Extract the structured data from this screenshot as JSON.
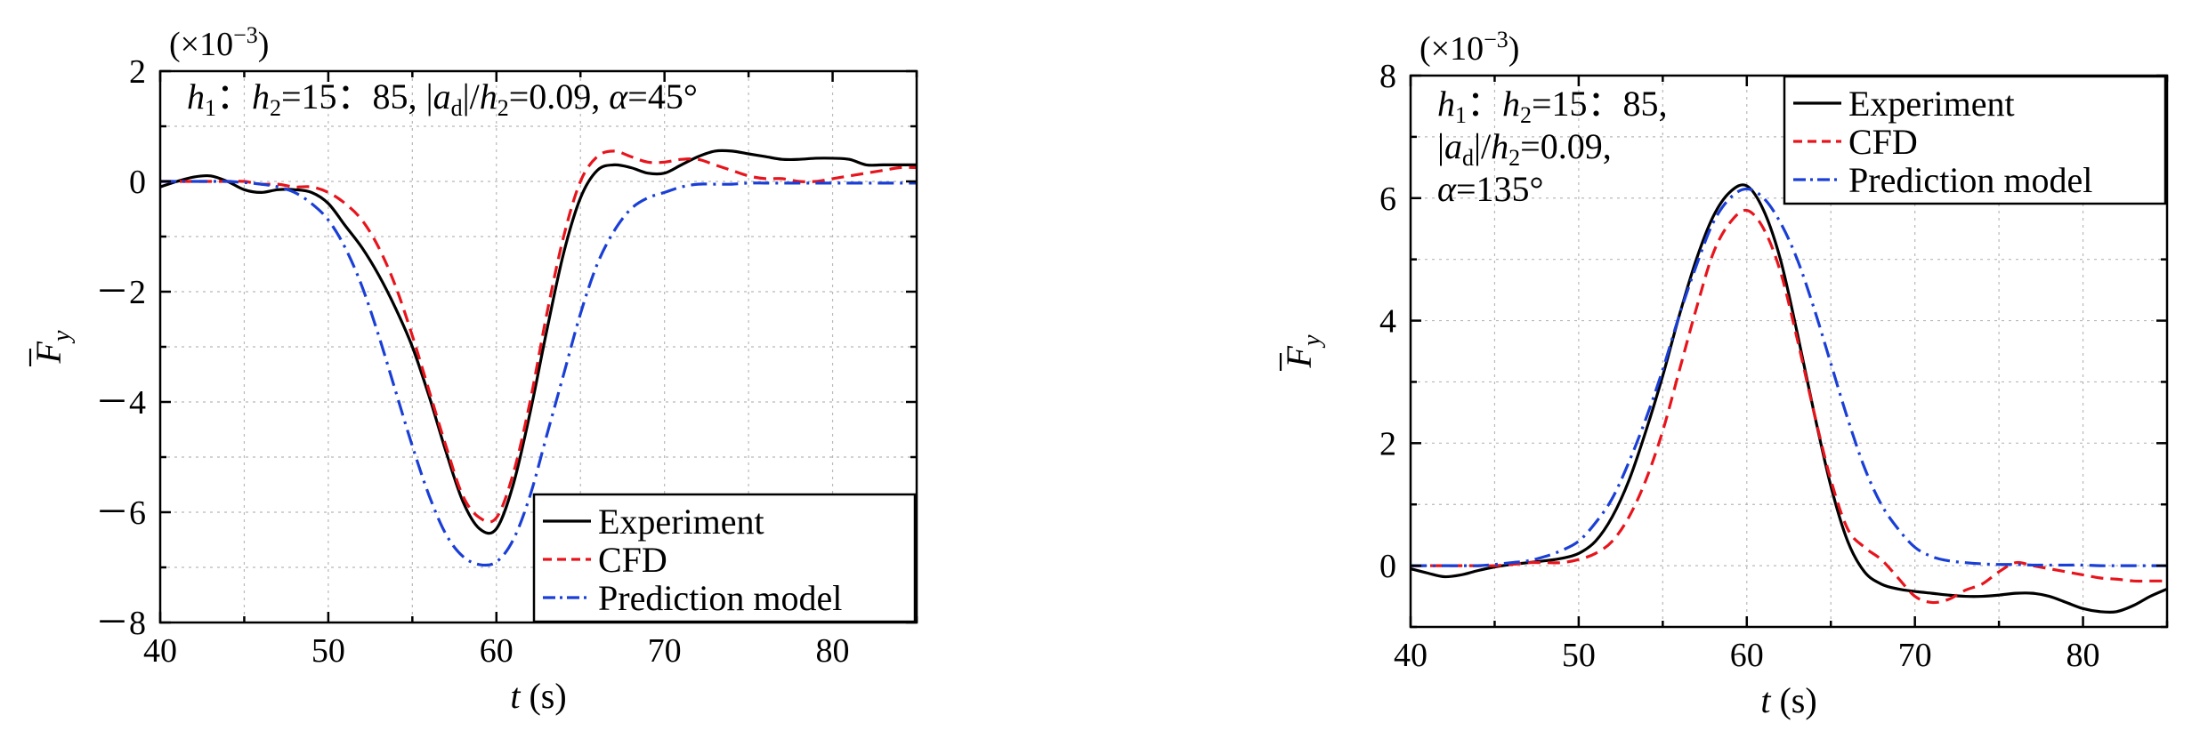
{
  "chart_data": [
    {
      "type": "line",
      "multiplier": "(×10",
      "multiplier_exp": "−3",
      "multiplier_close": ")",
      "annotation": [
        {
          "parts": [
            [
              "h",
              "i"
            ],
            [
              "1",
              "sub"
            ],
            [
              "：",
              "n"
            ],
            [
              "h",
              "i"
            ],
            [
              "2",
              "sub"
            ],
            [
              "=15：85,  ",
              "n"
            ],
            [
              "|",
              "n"
            ],
            [
              "a",
              "i"
            ],
            [
              "d",
              "sub"
            ],
            [
              "|/",
              "n"
            ],
            [
              "h",
              "i"
            ],
            [
              "2",
              "sub"
            ],
            [
              "=0.09, ",
              "n"
            ],
            [
              "α",
              "i"
            ],
            [
              "=45°",
              "n"
            ]
          ]
        }
      ],
      "xlabel": "t",
      "xlabel_unit": " (s)",
      "ylabel": "F",
      "ylabel_sub": "y",
      "xlim": [
        40,
        85
      ],
      "ylim": [
        -8,
        2
      ],
      "x_ticks": [
        40,
        50,
        60,
        70,
        80
      ],
      "y_ticks": [
        -8,
        -6,
        -4,
        -2,
        0,
        2
      ],
      "y_tick_labels": [
        "－8",
        "－6",
        "－4",
        "－2",
        "0",
        "2"
      ],
      "x_tick_labels": [
        "40",
        "50",
        "60",
        "70",
        "80"
      ],
      "legend": {
        "placement": "bottom-right"
      },
      "series": [
        {
          "name": "Experiment",
          "color": "#000000",
          "dash": "solid",
          "x": [
            40,
            41,
            42,
            43,
            44,
            45,
            46,
            47,
            48,
            49,
            50,
            51,
            52,
            53,
            54,
            55,
            56,
            57,
            58,
            59,
            60,
            61,
            62,
            63,
            64,
            65,
            66,
            67,
            68,
            69,
            70,
            71,
            72,
            73,
            74,
            75,
            76,
            77,
            78,
            79,
            80,
            81,
            82,
            83,
            84,
            85
          ],
          "y": [
            -0.1,
            0.0,
            0.08,
            0.1,
            0.0,
            -0.15,
            -0.2,
            -0.15,
            -0.15,
            -0.2,
            -0.4,
            -0.8,
            -1.2,
            -1.7,
            -2.3,
            -3.0,
            -3.9,
            -4.9,
            -5.8,
            -6.3,
            -6.3,
            -5.5,
            -4.2,
            -2.7,
            -1.3,
            -0.3,
            0.2,
            0.3,
            0.25,
            0.15,
            0.15,
            0.3,
            0.45,
            0.55,
            0.55,
            0.5,
            0.45,
            0.4,
            0.4,
            0.42,
            0.42,
            0.4,
            0.3,
            0.3,
            0.3,
            0.3
          ]
        },
        {
          "name": "CFD",
          "color": "#e8141c",
          "dash": "dash",
          "x": [
            40,
            41,
            42,
            43,
            44,
            45,
            46,
            47,
            48,
            49,
            50,
            51,
            52,
            53,
            54,
            55,
            56,
            57,
            58,
            59,
            60,
            61,
            62,
            63,
            64,
            65,
            66,
            67,
            68,
            69,
            70,
            71,
            72,
            73,
            74,
            75,
            76,
            77,
            78,
            79,
            80,
            81,
            82,
            83,
            84,
            85
          ],
          "y": [
            0.0,
            0.0,
            0.0,
            0.0,
            0.0,
            0.0,
            -0.05,
            -0.05,
            -0.1,
            -0.1,
            -0.2,
            -0.4,
            -0.7,
            -1.2,
            -1.9,
            -2.8,
            -3.8,
            -4.8,
            -5.7,
            -6.1,
            -6.1,
            -5.3,
            -4.0,
            -2.4,
            -1.0,
            0.0,
            0.45,
            0.55,
            0.45,
            0.35,
            0.35,
            0.4,
            0.4,
            0.3,
            0.2,
            0.1,
            0.05,
            0.05,
            0.0,
            0.0,
            0.05,
            0.1,
            0.15,
            0.2,
            0.25,
            0.25
          ]
        },
        {
          "name": "Prediction model",
          "color": "#1a3fd6",
          "dash": "dashdot",
          "x": [
            40,
            41,
            42,
            43,
            44,
            45,
            46,
            47,
            48,
            49,
            50,
            51,
            52,
            53,
            54,
            55,
            56,
            57,
            58,
            59,
            60,
            61,
            62,
            63,
            64,
            65,
            66,
            67,
            68,
            69,
            70,
            71,
            72,
            73,
            74,
            75,
            76,
            77,
            78,
            79,
            80,
            81,
            82,
            83,
            84,
            85
          ],
          "y": [
            0.0,
            0.0,
            0.0,
            0.0,
            0.0,
            -0.02,
            -0.05,
            -0.1,
            -0.2,
            -0.4,
            -0.7,
            -1.2,
            -1.9,
            -2.8,
            -3.8,
            -4.8,
            -5.7,
            -6.4,
            -6.8,
            -6.95,
            -6.9,
            -6.5,
            -5.7,
            -4.6,
            -3.5,
            -2.4,
            -1.5,
            -0.9,
            -0.5,
            -0.3,
            -0.2,
            -0.1,
            -0.05,
            -0.05,
            -0.05,
            -0.03,
            -0.03,
            -0.03,
            -0.03,
            -0.03,
            -0.03,
            -0.03,
            -0.03,
            -0.03,
            -0.03,
            -0.03
          ]
        }
      ]
    },
    {
      "type": "line",
      "multiplier": "(×10",
      "multiplier_exp": "−3",
      "multiplier_close": ")",
      "annotation": [
        {
          "parts": [
            [
              "h",
              "i"
            ],
            [
              "1",
              "sub"
            ],
            [
              "：",
              "n"
            ],
            [
              "h",
              "i"
            ],
            [
              "2",
              "sub"
            ],
            [
              "=15：85,",
              "n"
            ]
          ]
        },
        {
          "parts": [
            [
              "|",
              "n"
            ],
            [
              "a",
              "i"
            ],
            [
              "d",
              "sub"
            ],
            [
              "|/",
              "n"
            ],
            [
              "h",
              "i"
            ],
            [
              "2",
              "sub"
            ],
            [
              "=0.09,",
              "n"
            ]
          ]
        },
        {
          "parts": [
            [
              "α",
              "i"
            ],
            [
              "=135°",
              "n"
            ]
          ]
        }
      ],
      "xlabel": "t",
      "xlabel_unit": " (s)",
      "ylabel": "F",
      "ylabel_sub": "y",
      "xlim": [
        40,
        85
      ],
      "ylim": [
        -1,
        8
      ],
      "x_ticks": [
        40,
        50,
        60,
        70,
        80
      ],
      "y_ticks": [
        0,
        2,
        4,
        6,
        8
      ],
      "y_tick_labels": [
        "0",
        "2",
        "4",
        "6",
        "8"
      ],
      "x_tick_labels": [
        "40",
        "50",
        "60",
        "70",
        "80"
      ],
      "legend": {
        "placement": "top-right"
      },
      "series": [
        {
          "name": "Experiment",
          "color": "#000000",
          "dash": "solid",
          "x": [
            40,
            41,
            42,
            43,
            44,
            45,
            46,
            47,
            48,
            49,
            50,
            51,
            52,
            53,
            54,
            55,
            56,
            57,
            58,
            59,
            60,
            61,
            62,
            63,
            64,
            65,
            66,
            67,
            68,
            69,
            70,
            71,
            72,
            73,
            74,
            75,
            76,
            77,
            78,
            79,
            80,
            81,
            82,
            83,
            84,
            85
          ],
          "y": [
            -0.05,
            -0.12,
            -0.18,
            -0.15,
            -0.08,
            -0.02,
            0.02,
            0.05,
            0.08,
            0.12,
            0.2,
            0.4,
            0.8,
            1.4,
            2.2,
            3.1,
            4.1,
            5.0,
            5.7,
            6.1,
            6.2,
            5.8,
            5.0,
            3.8,
            2.5,
            1.3,
            0.4,
            -0.1,
            -0.3,
            -0.38,
            -0.42,
            -0.45,
            -0.48,
            -0.5,
            -0.5,
            -0.48,
            -0.45,
            -0.45,
            -0.5,
            -0.6,
            -0.7,
            -0.75,
            -0.75,
            -0.65,
            -0.5,
            -0.38
          ]
        },
        {
          "name": "CFD",
          "color": "#e8141c",
          "dash": "dash",
          "x": [
            40,
            41,
            42,
            43,
            44,
            45,
            46,
            47,
            48,
            49,
            50,
            51,
            52,
            53,
            54,
            55,
            56,
            57,
            58,
            59,
            60,
            61,
            62,
            63,
            64,
            65,
            66,
            67,
            68,
            69,
            70,
            71,
            72,
            73,
            74,
            75,
            76,
            77,
            78,
            79,
            80,
            81,
            82,
            83,
            84,
            85
          ],
          "y": [
            0.0,
            0.0,
            0.0,
            0.0,
            0.0,
            0.0,
            0.02,
            0.05,
            0.05,
            0.05,
            0.1,
            0.2,
            0.4,
            0.8,
            1.4,
            2.2,
            3.2,
            4.2,
            5.1,
            5.6,
            5.8,
            5.5,
            4.8,
            3.7,
            2.5,
            1.4,
            0.6,
            0.3,
            0.1,
            -0.2,
            -0.5,
            -0.6,
            -0.55,
            -0.4,
            -0.3,
            -0.1,
            0.05,
            0.0,
            -0.05,
            -0.1,
            -0.15,
            -0.2,
            -0.22,
            -0.25,
            -0.25,
            -0.25
          ]
        },
        {
          "name": "Prediction model",
          "color": "#1a3fd6",
          "dash": "dashdot",
          "x": [
            40,
            41,
            42,
            43,
            44,
            45,
            46,
            47,
            48,
            49,
            50,
            51,
            52,
            53,
            54,
            55,
            56,
            57,
            58,
            59,
            60,
            61,
            62,
            63,
            64,
            65,
            66,
            67,
            68,
            69,
            70,
            71,
            72,
            73,
            74,
            75,
            76,
            77,
            78,
            79,
            80,
            81,
            82,
            83,
            84,
            85
          ],
          "y": [
            0.0,
            0.0,
            0.0,
            0.0,
            0.0,
            0.02,
            0.05,
            0.08,
            0.15,
            0.25,
            0.4,
            0.7,
            1.1,
            1.7,
            2.4,
            3.2,
            4.1,
            4.9,
            5.6,
            6.0,
            6.15,
            6.0,
            5.6,
            5.0,
            4.2,
            3.3,
            2.4,
            1.6,
            1.0,
            0.6,
            0.3,
            0.15,
            0.08,
            0.05,
            0.03,
            0.02,
            0.02,
            0.01,
            0.01,
            0.01,
            0.01,
            0.0,
            0.0,
            0.0,
            0.0,
            0.0
          ]
        }
      ]
    }
  ]
}
